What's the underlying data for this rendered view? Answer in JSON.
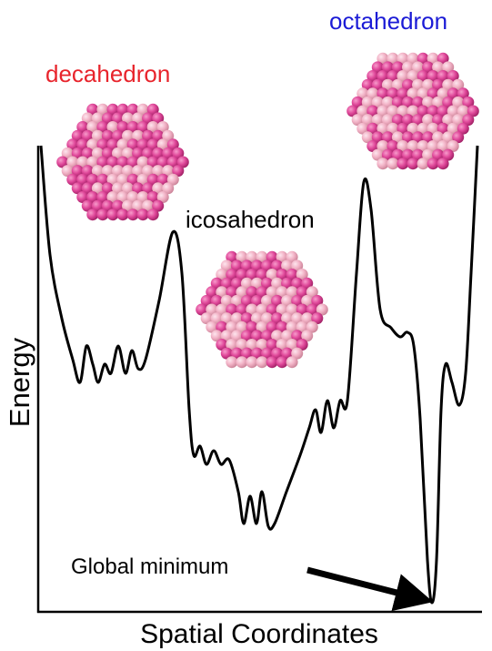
{
  "labels": {
    "decahedron": "decahedron",
    "octahedron": "octahedron",
    "icosahedron": "icosahedron",
    "global_minimum": "Global minimum",
    "y_axis": "Energy",
    "x_axis": "Spatial Coordinates"
  }
}
